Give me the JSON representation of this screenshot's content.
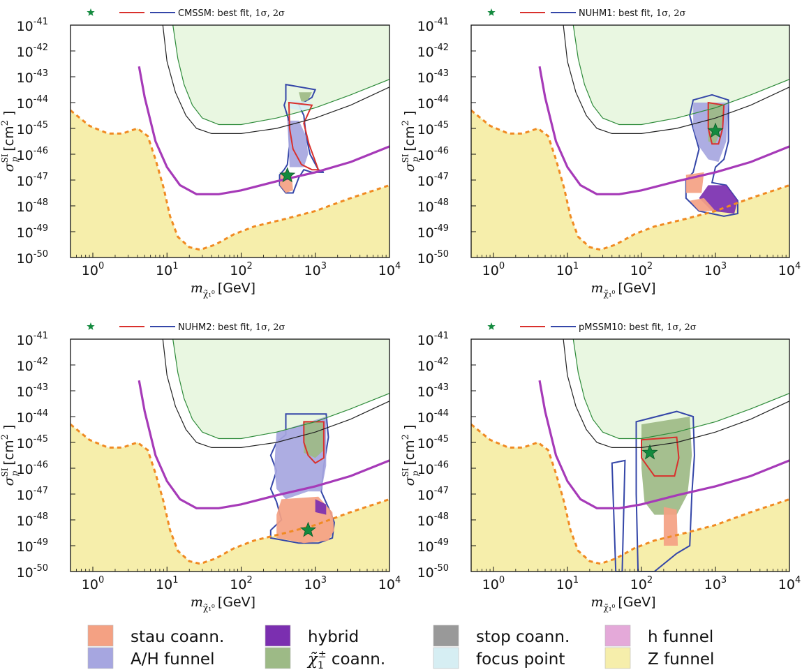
{
  "colors": {
    "stau": "#f4a183",
    "ah": "#a6a6e0",
    "hybrid": "#7b2fb0",
    "chargino": "#9dba86",
    "stop": "#999999",
    "focus": "#d6eef3",
    "hfun": "#e4a9d9",
    "zfun": "#f6eeab",
    "greenband": "#e9f7e1",
    "greenline": "#2e8b3a",
    "lux": "#a63ab8",
    "neutrino": "#f08a22",
    "blueC": "#3446a8",
    "redC": "#d9302c",
    "star": "#138a3e"
  },
  "shared_axes": {
    "xlabel_sym": "m",
    "xlabel_sub": "χ̃₁⁰",
    "xlabel_unit": "[GeV]",
    "ylabel_sym": "σ",
    "ylabel_sup": "SI",
    "ylabel_sub": "p",
    "ylabel_unit": "[cm",
    "ylabel_unit_sup": "2",
    "ylabel_unit_end": " ]",
    "xticks": [
      {
        "base": "10",
        "exp": "0"
      },
      {
        "base": "10",
        "exp": "1"
      },
      {
        "base": "10",
        "exp": "2"
      },
      {
        "base": "10",
        "exp": "3"
      },
      {
        "base": "10",
        "exp": "4"
      }
    ],
    "yticks": [
      {
        "base": "10",
        "exp": "-41"
      },
      {
        "base": "10",
        "exp": "-42"
      },
      {
        "base": "10",
        "exp": "-43"
      },
      {
        "base": "10",
        "exp": "-44"
      },
      {
        "base": "10",
        "exp": "-45"
      },
      {
        "base": "10",
        "exp": "-46"
      },
      {
        "base": "10",
        "exp": "-47"
      },
      {
        "base": "10",
        "exp": "-48"
      },
      {
        "base": "10",
        "exp": "-49"
      },
      {
        "base": "10",
        "exp": "-50"
      }
    ]
  },
  "legend_suffix": {
    "text": ": best fit, ",
    "s1": "1σ",
    "comma": ", ",
    "s2": "2σ"
  },
  "chart_data": [
    {
      "type": "scatter",
      "model": "CMSSM",
      "xscale": "log",
      "yscale": "log",
      "xlim": [
        0.5,
        10000
      ],
      "ylim": [
        1e-50,
        1e-41
      ],
      "best_fit": {
        "x": 420,
        "y": 1.5e-47
      }
    },
    {
      "type": "scatter",
      "model": "NUHM1",
      "xscale": "log",
      "yscale": "log",
      "xlim": [
        0.5,
        10000
      ],
      "ylim": [
        1e-50,
        1e-41
      ],
      "best_fit": {
        "x": 1000,
        "y": 8e-46
      }
    },
    {
      "type": "scatter",
      "model": "NUHM2",
      "xscale": "log",
      "yscale": "log",
      "xlim": [
        0.5,
        10000
      ],
      "ylim": [
        1e-50,
        1e-41
      ],
      "best_fit": {
        "x": 800,
        "y": 4e-49
      }
    },
    {
      "type": "scatter",
      "model": "pMSSM10",
      "xscale": "log",
      "yscale": "log",
      "xlim": [
        0.5,
        10000
      ],
      "ylim": [
        1e-50,
        1e-41
      ],
      "best_fit": {
        "x": 130,
        "y": 4e-46
      }
    }
  ],
  "key": [
    {
      "label": "stau coann.",
      "color": "#f4a183"
    },
    {
      "label": "A/H funnel",
      "color": "#a6a6e0"
    },
    {
      "label": "hybrid",
      "color": "#7b2fb0"
    },
    {
      "label": "χ̃₁± coann.",
      "color": "#9dba86",
      "sym": "χ̃",
      "sub": "1",
      "sup": "±",
      "rest": " coann."
    },
    {
      "label": "stop coann.",
      "color": "#999999"
    },
    {
      "label": "focus point",
      "color": "#d6eef3"
    },
    {
      "label": "h funnel",
      "color": "#e4a9d9"
    },
    {
      "label": "Z funnel",
      "color": "#f6eeab"
    }
  ]
}
